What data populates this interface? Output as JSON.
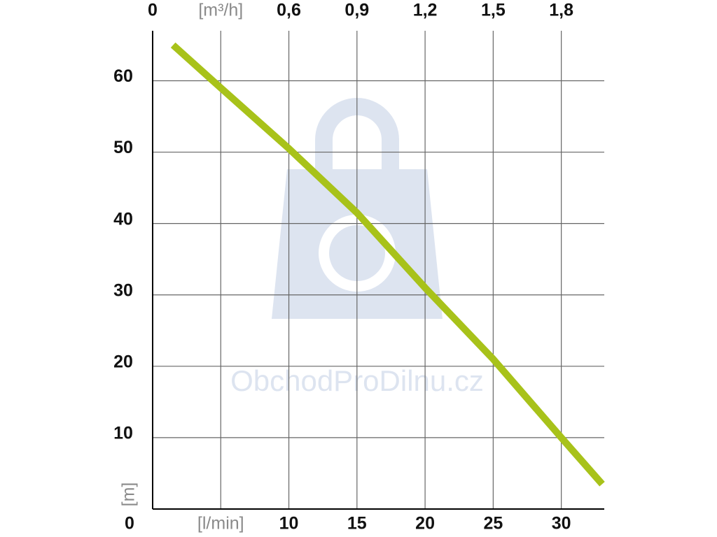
{
  "chart_data": {
    "type": "line",
    "x_unit_label": "[l/min]",
    "y_unit_label": "[m]",
    "watermark": "ObchodProDilnu.cz",
    "x": [
      1.5,
      5,
      10,
      15,
      20,
      25,
      30,
      33
    ],
    "series": [
      {
        "color": "#a8c21a",
        "values": [
          65,
          59,
          50.5,
          41.5,
          31,
          21,
          10,
          3.5
        ]
      }
    ],
    "xlim": [
      0,
      33
    ],
    "xticks": [
      {
        "value": 5,
        "label": "[l/min]"
      },
      10,
      15,
      20,
      25,
      30
    ],
    "ylim": [
      0,
      67
    ],
    "yticks": [
      0,
      10,
      20,
      30,
      40,
      50,
      60
    ],
    "x2lim": [
      0,
      1.98
    ],
    "x2ticks": [
      0,
      {
        "value": 0.3,
        "label": "[m³/h]"
      },
      {
        "value": 0.6,
        "label": "0,6"
      },
      {
        "value": 0.9,
        "label": "0,9"
      },
      {
        "value": 1.2,
        "label": "1,2"
      },
      {
        "value": 1.5,
        "label": "1,5"
      },
      {
        "value": 1.8,
        "label": "1,8"
      }
    ],
    "grid": true
  }
}
